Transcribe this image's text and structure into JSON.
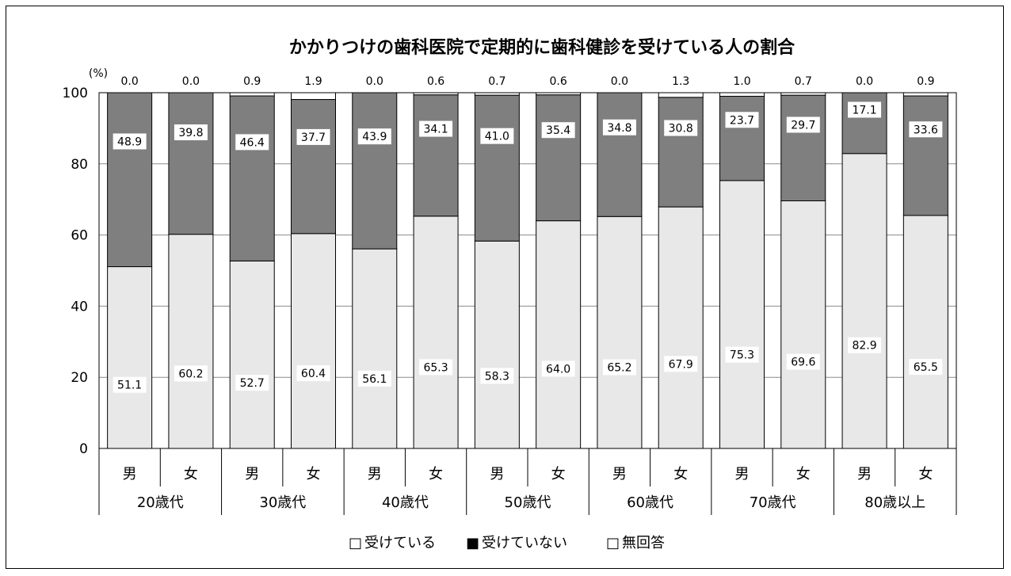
{
  "chart_data": {
    "type": "bar",
    "stacked": true,
    "title": "かかりつけの歯科医院で定期的に歯科健診を受けている人の割合",
    "ylabel": "(%)",
    "ylim": [
      0,
      100
    ],
    "yticks": [
      "0",
      "20",
      "40",
      "60",
      "80",
      "100"
    ],
    "grid": true,
    "legend_position": "bottom",
    "categories": [
      "男",
      "女",
      "男",
      "女",
      "男",
      "女",
      "男",
      "女",
      "男",
      "女",
      "男",
      "女",
      "男",
      "女"
    ],
    "groups": [
      "20歳代",
      "30歳代",
      "40歳代",
      "50歳代",
      "60歳代",
      "70歳代",
      "80歳以上"
    ],
    "series": [
      {
        "name": "受けている",
        "color": "#e8e8e8",
        "values": [
          51.1,
          60.2,
          52.7,
          60.4,
          56.1,
          65.3,
          58.3,
          64.0,
          65.2,
          67.9,
          75.3,
          69.6,
          82.9,
          65.5
        ],
        "labels": [
          "51.1",
          "60.2",
          "52.7",
          "60.4",
          "56.1",
          "65.3",
          "58.3",
          "64.0",
          "65.2",
          "67.9",
          "75.3",
          "69.6",
          "82.9",
          "65.5"
        ]
      },
      {
        "name": "受けていない",
        "color": "#7f7f7f",
        "values": [
          48.9,
          39.8,
          46.4,
          37.7,
          43.9,
          34.1,
          41.0,
          35.4,
          34.8,
          30.8,
          23.7,
          29.7,
          17.1,
          33.6
        ],
        "labels": [
          "48.9",
          "39.8",
          "46.4",
          "37.7",
          "43.9",
          "34.1",
          "41.0",
          "35.4",
          "34.8",
          "30.8",
          "23.7",
          "29.7",
          "17.1",
          "33.6"
        ]
      },
      {
        "name": "無回答",
        "color": "#ffffff",
        "values": [
          0.0,
          0.0,
          0.9,
          1.9,
          0.0,
          0.6,
          0.7,
          0.6,
          0.0,
          1.3,
          1.0,
          0.7,
          0.0,
          0.9
        ],
        "labels": [
          "0.0",
          "0.0",
          "0.9",
          "1.9",
          "0.0",
          "0.6",
          "0.7",
          "0.6",
          "0.0",
          "1.3",
          "1.0",
          "0.7",
          "0.0",
          "0.9"
        ]
      }
    ],
    "legend": [
      {
        "marker": "□",
        "label": "受けている"
      },
      {
        "marker": "■",
        "label": "受けていない"
      },
      {
        "marker": "□",
        "label": "無回答"
      }
    ]
  }
}
